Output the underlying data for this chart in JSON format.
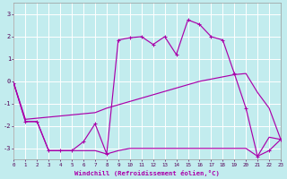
{
  "xlabel": "Windchill (Refroidissement éolien,°C)",
  "background_color": "#c2ecee",
  "line_color": "#aa00aa",
  "grid_color": "#ffffff",
  "xmin": 0,
  "xmax": 23,
  "ymin": -3.5,
  "ymax": 3.5,
  "yticks": [
    -3,
    -2,
    -1,
    0,
    1,
    2,
    3
  ],
  "line1_x": [
    0,
    1,
    2,
    3,
    4,
    5,
    6,
    7,
    8,
    9,
    10,
    11,
    12,
    13,
    14,
    15,
    16,
    17,
    18,
    19,
    20,
    21,
    22,
    23
  ],
  "line1_y": [
    -0.1,
    -1.8,
    -1.8,
    -3.1,
    -3.1,
    -3.1,
    -2.7,
    -1.9,
    -3.25,
    1.85,
    1.95,
    2.0,
    1.65,
    2.0,
    1.2,
    2.75,
    2.55,
    2.0,
    1.85,
    0.35,
    -1.2,
    -3.35,
    -3.1,
    -2.6
  ],
  "line2_x": [
    0,
    1,
    2,
    3,
    4,
    5,
    6,
    7,
    8,
    9,
    10,
    11,
    12,
    13,
    14,
    15,
    16,
    17,
    18,
    19,
    20,
    21,
    22,
    23
  ],
  "line2_y": [
    -0.1,
    -1.7,
    -1.65,
    -1.6,
    -1.55,
    -1.5,
    -1.45,
    -1.4,
    -1.2,
    -1.05,
    -0.9,
    -0.75,
    -0.6,
    -0.45,
    -0.3,
    -0.15,
    0.0,
    0.1,
    0.2,
    0.3,
    0.35,
    -0.5,
    -1.2,
    -2.6
  ],
  "line3_x": [
    0,
    1,
    2,
    3,
    4,
    5,
    6,
    7,
    8,
    9,
    10,
    11,
    12,
    13,
    14,
    15,
    16,
    17,
    18,
    19,
    20,
    21,
    22,
    23
  ],
  "line3_y": [
    -0.1,
    -1.8,
    -1.8,
    -3.1,
    -3.1,
    -3.1,
    -3.1,
    -3.1,
    -3.25,
    -3.1,
    -3.0,
    -3.0,
    -3.0,
    -3.0,
    -3.0,
    -3.0,
    -3.0,
    -3.0,
    -3.0,
    -3.0,
    -3.0,
    -3.35,
    -2.5,
    -2.6
  ]
}
